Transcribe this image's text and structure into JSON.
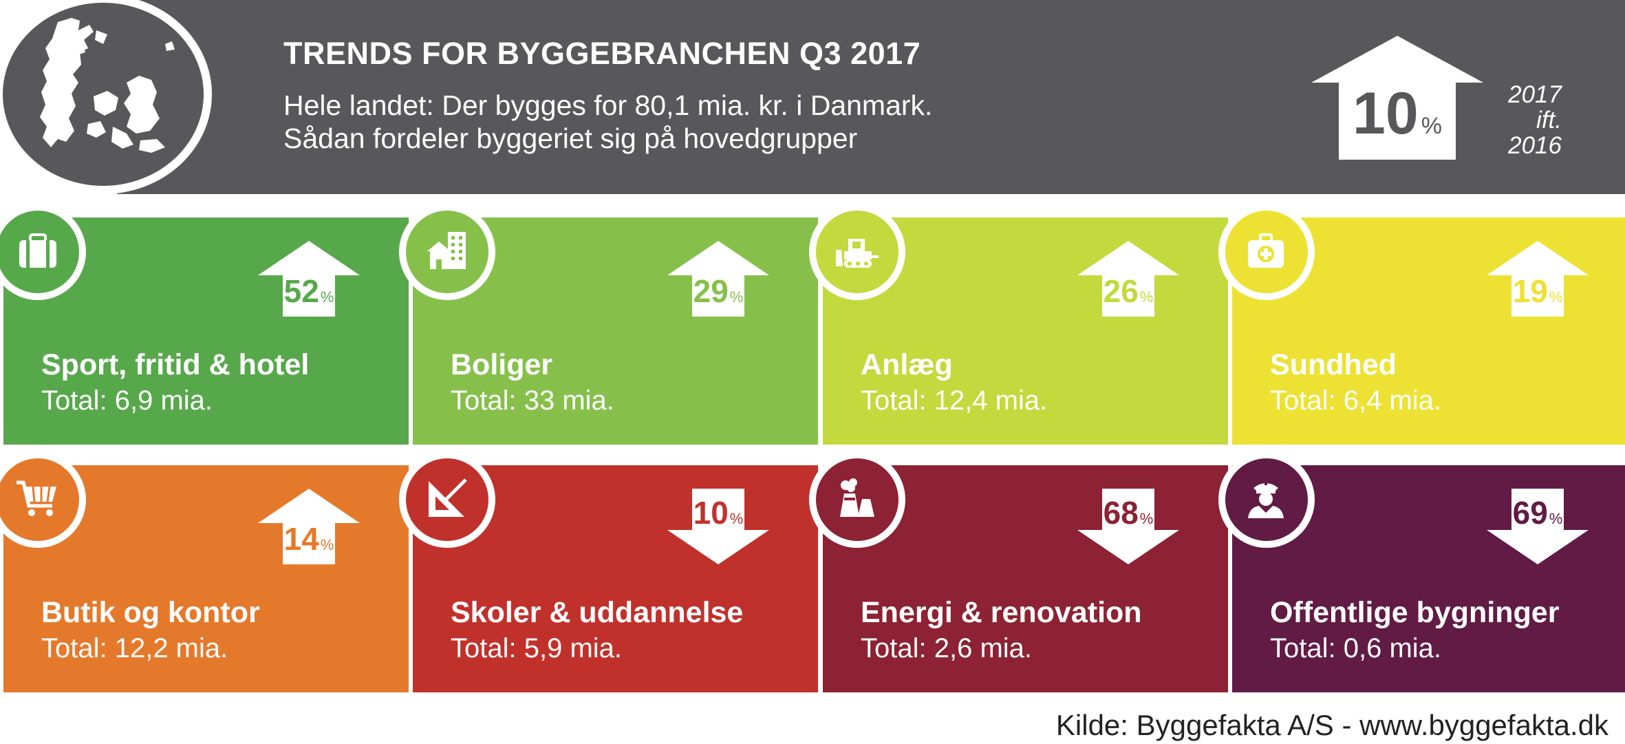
{
  "header": {
    "title": "TRENDS FOR BYGGEBRANCHEN Q3 2017",
    "subtitle_line1": "Hele landet: Der bygges for 80,1 mia. kr. i Danmark.",
    "subtitle_line2": "Sådan fordeler byggeriet sig på hovedgrupper",
    "change_value": "10",
    "change_unit": "%",
    "change_direction": "up",
    "period_line1": "2017",
    "period_line2": "ift.",
    "period_line3": "2016",
    "background_color": "#58585a",
    "map_icon": "denmark-map-icon"
  },
  "cards": [
    {
      "title": "Sport, fritid & hotel",
      "total": "Total: 6,9 mia.",
      "pct": "52",
      "unit": "%",
      "direction": "up",
      "color": "#57a84b",
      "icon": "luggage-icon"
    },
    {
      "title": "Boliger",
      "total": "Total: 33 mia.",
      "pct": "29",
      "unit": "%",
      "direction": "up",
      "color": "#86c04b",
      "icon": "buildings-icon"
    },
    {
      "title": "Anlæg",
      "total": "Total: 12,4 mia.",
      "pct": "26",
      "unit": "%",
      "direction": "up",
      "color": "#c2da3d",
      "icon": "bulldozer-icon"
    },
    {
      "title": "Sundhed",
      "total": "Total: 6,4 mia.",
      "pct": "19",
      "unit": "%",
      "direction": "up",
      "color": "#ede233",
      "icon": "first-aid-kit-icon"
    },
    {
      "title": "Butik og kontor",
      "total": "Total: 12,2 mia.",
      "pct": "14",
      "unit": "%",
      "direction": "up",
      "color": "#e5792b",
      "icon": "shopping-cart-icon"
    },
    {
      "title": "Skoler & uddannelse",
      "total": "Total: 5,9 mia.",
      "pct": "10",
      "unit": "%",
      "direction": "down",
      "color": "#c1312c",
      "icon": "set-square-icon"
    },
    {
      "title": "Energi & renovation",
      "total": "Total: 2,6 mia.",
      "pct": "68",
      "unit": "%",
      "direction": "down",
      "color": "#8c2233",
      "icon": "power-plant-icon"
    },
    {
      "title": "Offentlige bygninger",
      "total": "Total: 0,6 mia.",
      "pct": "69",
      "unit": "%",
      "direction": "down",
      "color": "#611b45",
      "icon": "officer-icon"
    }
  ],
  "source": "Kilde: Byggefakta A/S - www.byggefakta.dk"
}
